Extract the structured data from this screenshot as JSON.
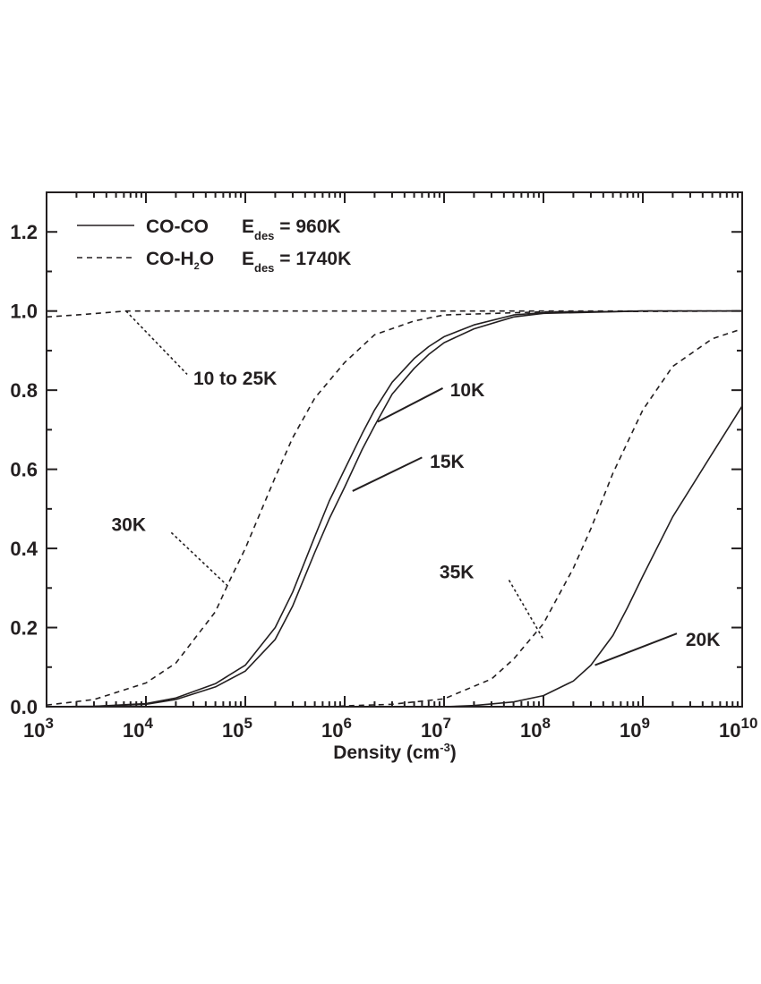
{
  "chart_data": {
    "type": "line",
    "title": "",
    "xlabel": {
      "base": "Density (cm",
      "sup": "-3",
      "end": ")"
    },
    "ylabel": "",
    "xscale": "log",
    "xlim": [
      1000,
      10000000000
    ],
    "ylim": [
      0,
      1.3
    ],
    "grid": false,
    "legend_position": "top-left",
    "x_ticks": [
      {
        "base": "10",
        "exp": "3",
        "value": 1000
      },
      {
        "base": "10",
        "exp": "4",
        "value": 10000
      },
      {
        "base": "10",
        "exp": "5",
        "value": 100000
      },
      {
        "base": "10",
        "exp": "6",
        "value": 1000000
      },
      {
        "base": "10",
        "exp": "7",
        "value": 10000000
      },
      {
        "base": "10",
        "exp": "8",
        "value": 100000000
      },
      {
        "base": "10",
        "exp": "9",
        "value": 1000000000
      },
      {
        "base": "10",
        "exp": "10",
        "value": 10000000000
      }
    ],
    "y_ticks": [
      "0.0",
      "0.2",
      "0.4",
      "0.6",
      "0.8",
      "1.0",
      "1.2"
    ],
    "legend": [
      {
        "style": "solid",
        "pre": "CO-CO",
        "sub1": "",
        "post": "",
        "e": "E",
        "sub2": "des",
        "val": "= 960K"
      },
      {
        "style": "dashed",
        "pre": "CO-H",
        "sub1": "2",
        "post": "O",
        "e": "E",
        "sub2": "des",
        "val": "= 1740K"
      }
    ],
    "series": [
      {
        "style": "solid",
        "x": [
          1000,
          3000,
          10000,
          20000,
          50000,
          100000,
          200000,
          300000,
          500000,
          700000,
          1000000,
          1500000,
          2000000,
          3000000,
          5000000,
          7000000,
          10000000,
          20000000,
          50000000,
          100000000,
          1000000000,
          10000000000
        ],
        "y": [
          0.0,
          0.001,
          0.008,
          0.022,
          0.058,
          0.105,
          0.2,
          0.29,
          0.43,
          0.52,
          0.6,
          0.69,
          0.75,
          0.82,
          0.88,
          0.91,
          0.935,
          0.965,
          0.99,
          0.996,
          1.0,
          1.0
        ]
      },
      {
        "style": "solid",
        "x": [
          1000,
          3000,
          10000,
          20000,
          50000,
          100000,
          200000,
          300000,
          500000,
          700000,
          1000000,
          1500000,
          2000000,
          3000000,
          5000000,
          7000000,
          10000000,
          20000000,
          50000000,
          100000000,
          1000000000,
          10000000000
        ],
        "y": [
          0.0,
          0.001,
          0.006,
          0.018,
          0.05,
          0.09,
          0.17,
          0.255,
          0.39,
          0.475,
          0.555,
          0.65,
          0.71,
          0.79,
          0.855,
          0.89,
          0.92,
          0.955,
          0.985,
          0.994,
          1.0,
          1.0
        ]
      },
      {
        "style": "solid",
        "x": [
          10000000,
          20000000,
          50000000,
          100000000,
          200000000,
          300000000,
          500000000,
          700000000,
          1000000000,
          2000000000,
          5000000000,
          10000000000
        ],
        "y": [
          0.0,
          0.003,
          0.012,
          0.028,
          0.065,
          0.105,
          0.18,
          0.25,
          0.33,
          0.48,
          0.64,
          0.76
        ]
      },
      {
        "style": "dashed",
        "x": [
          1000,
          2000,
          6300,
          10000000000
        ],
        "y": [
          0.985,
          0.99,
          1.0,
          1.0
        ]
      },
      {
        "style": "dashed",
        "x": [
          1000,
          3000,
          10000,
          20000,
          50000,
          70000,
          100000,
          200000,
          300000,
          500000,
          1000000,
          2000000,
          5000000,
          10000000,
          100000000,
          10000000000
        ],
        "y": [
          0.004,
          0.018,
          0.06,
          0.11,
          0.24,
          0.32,
          0.4,
          0.58,
          0.68,
          0.78,
          0.87,
          0.94,
          0.975,
          0.99,
          0.998,
          1.0
        ]
      },
      {
        "style": "dashed",
        "x": [
          700000,
          1000000,
          3000000,
          10000000,
          30000000,
          50000000,
          100000000,
          200000000,
          300000000,
          500000000,
          1000000000,
          2000000000,
          5000000000,
          10000000000
        ],
        "y": [
          0.0,
          0.002,
          0.006,
          0.02,
          0.07,
          0.12,
          0.21,
          0.35,
          0.45,
          0.59,
          0.75,
          0.86,
          0.93,
          0.955
        ]
      }
    ],
    "annotations": [
      {
        "text": "10 to 25K",
        "style": "dotted",
        "label_x": 30000,
        "label_y": 0.83,
        "line": [
          [
            6300,
            1.0
          ],
          [
            26000,
            0.84
          ]
        ]
      },
      {
        "text": "30K",
        "style": "dotted",
        "label_x": 4500,
        "label_y": 0.46,
        "line": [
          [
            18000,
            0.44
          ],
          [
            70000,
            0.3
          ]
        ]
      },
      {
        "text": "35K",
        "style": "dotted",
        "label_x": 9000000,
        "label_y": 0.34,
        "line": [
          [
            45000000,
            0.32
          ],
          [
            100000000,
            0.17
          ]
        ]
      },
      {
        "text": "10K",
        "style": "solid",
        "label_x": 11500000,
        "label_y": 0.8,
        "line": [
          [
            2150000,
            0.72
          ],
          [
            9700000,
            0.805
          ]
        ]
      },
      {
        "text": "15K",
        "style": "solid",
        "label_x": 7200000,
        "label_y": 0.62,
        "line": [
          [
            1200000,
            0.545
          ],
          [
            6000000,
            0.63
          ]
        ]
      },
      {
        "text": "20K",
        "style": "solid",
        "label_x": 2700000000,
        "label_y": 0.17,
        "line": [
          [
            330000000,
            0.105
          ],
          [
            2200000000,
            0.185
          ]
        ]
      }
    ]
  }
}
